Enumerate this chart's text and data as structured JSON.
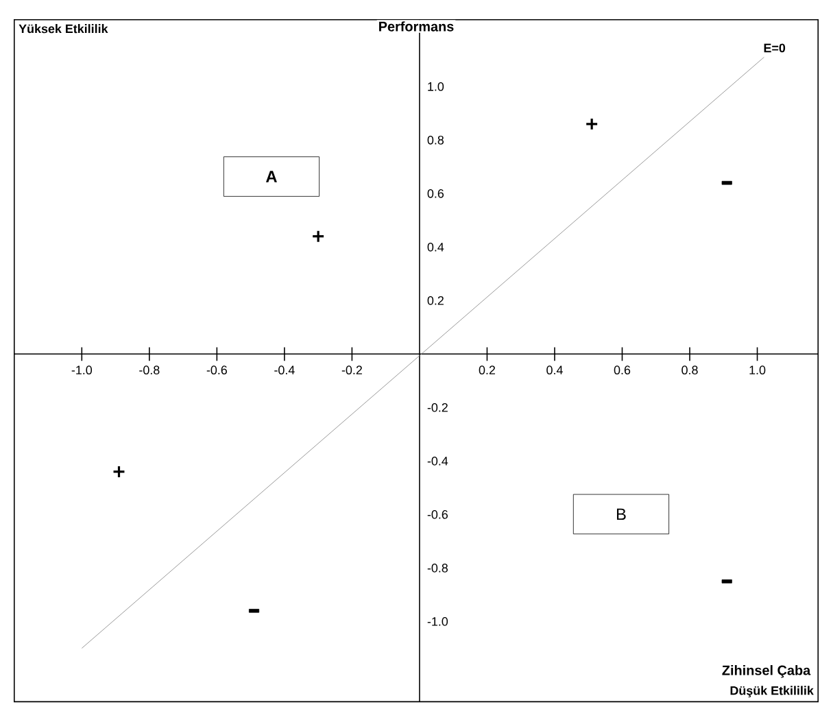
{
  "chart_data": {
    "type": "line",
    "xlabel": "Zihinsel Çaba",
    "ylabel": "Performans",
    "xlim": [
      -1.2,
      1.18
    ],
    "ylim": [
      -1.3,
      1.25
    ],
    "xticks": [
      {
        "value": -1,
        "label": "-1.0"
      },
      -0.8,
      -0.6,
      -0.4,
      -0.2,
      0.2,
      0.4,
      0.6,
      0.8,
      {
        "value": 1,
        "label": "1.0"
      }
    ],
    "yticks": [
      {
        "value": -1,
        "label": "-1.0"
      },
      -0.8,
      -0.6,
      -0.4,
      -0.2,
      0.2,
      0.4,
      0.6,
      0.8,
      {
        "value": 1,
        "label": "1.0"
      }
    ],
    "series": [
      {
        "name": "E=0",
        "color": "#808080",
        "x": [
          -1.0,
          1.02
        ],
        "values": [
          -1.1,
          1.11
        ]
      },
      {
        "type": "scatter",
        "marker": "cross",
        "color": "#000000",
        "x": [
          -0.3,
          0.51,
          -0.89
        ],
        "values": [
          0.44,
          0.86,
          -0.44
        ]
      },
      {
        "type": "scatter",
        "marker": "square",
        "color": "#000000",
        "x": [
          0.91,
          -0.49,
          0.91
        ],
        "values": [
          0.64,
          -0.96,
          -0.85
        ]
      }
    ],
    "annotations": [
      "Yüksek Etkililik",
      "Düşük Etkililik",
      "A",
      "B"
    ]
  }
}
